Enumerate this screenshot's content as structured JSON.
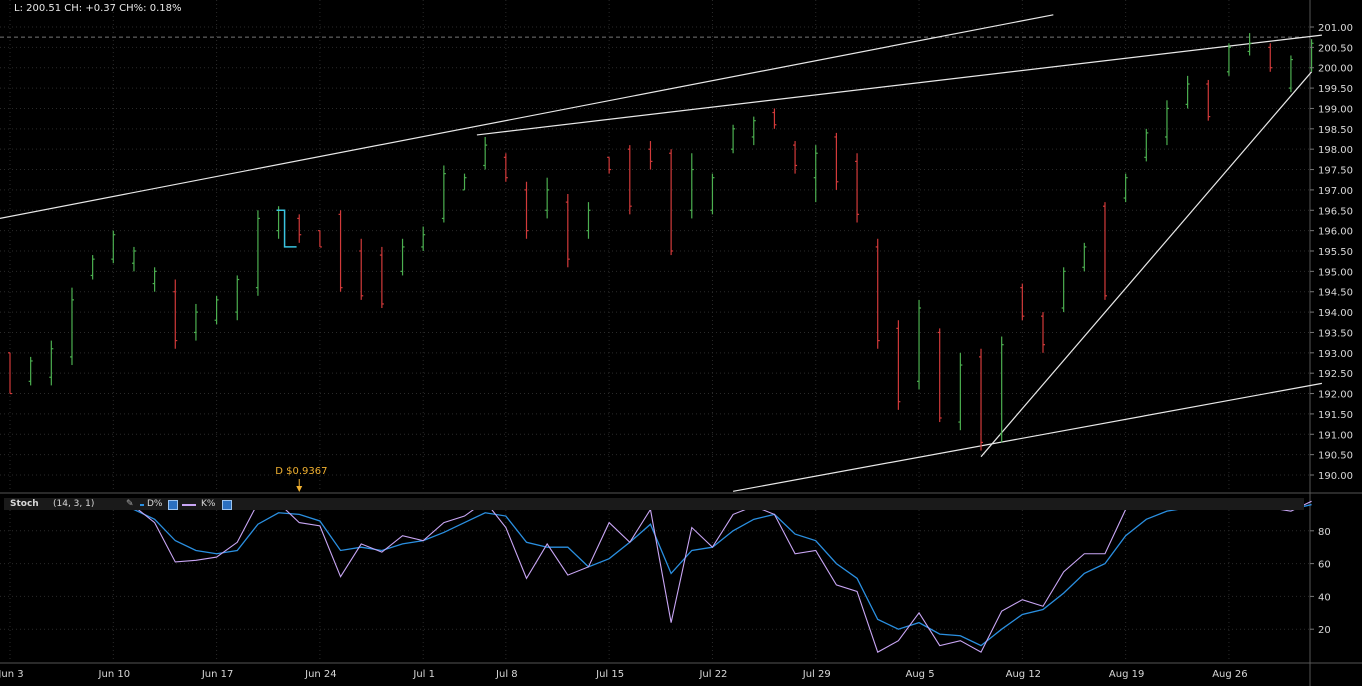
{
  "header": {
    "readout": "L: 200.51 CH: +0.37 CH%: 0.18%"
  },
  "dividend": {
    "label": "D $0.9367",
    "date_index": 14
  },
  "stoch": {
    "name": "Stoch",
    "params": "(14, 3, 1)",
    "d_label": "D%",
    "k_label": "K%",
    "d_color": "#2a8fe0",
    "k_color": "#c9a6f5",
    "yticks": [
      "80",
      "60",
      "40",
      "20"
    ]
  },
  "colors": {
    "up": "#4caf50",
    "down": "#d23a3a",
    "background": "#000000",
    "grid": "#2a2a2a"
  },
  "chart_data": {
    "type": "ohlc",
    "ylim": [
      189.6,
      201.3
    ],
    "yticks": [
      "201.00",
      "200.50",
      "200.00",
      "199.50",
      "199.00",
      "198.50",
      "198.00",
      "197.50",
      "197.00",
      "196.50",
      "196.00",
      "195.50",
      "195.00",
      "194.50",
      "194.00",
      "193.50",
      "193.00",
      "192.50",
      "192.00",
      "191.50",
      "191.00",
      "190.50",
      "190.00"
    ],
    "xticks": [
      {
        "label": "Jun 3",
        "i": 0
      },
      {
        "label": "Jun 10",
        "i": 5
      },
      {
        "label": "Jun 17",
        "i": 10
      },
      {
        "label": "Jun 24",
        "i": 15
      },
      {
        "label": "Jul 1",
        "i": 20
      },
      {
        "label": "Jul 8",
        "i": 24
      },
      {
        "label": "Jul 15",
        "i": 29
      },
      {
        "label": "Jul 22",
        "i": 34
      },
      {
        "label": "Jul 29",
        "i": 39
      },
      {
        "label": "Aug 5",
        "i": 44
      },
      {
        "label": "Aug 12",
        "i": 49
      },
      {
        "label": "Aug 19",
        "i": 54
      },
      {
        "label": "Aug 26",
        "i": 59
      }
    ],
    "last_price": 200.75,
    "bars": [
      {
        "h": 193.0,
        "l": 192.0,
        "o": 193.0,
        "c": 192.0
      },
      {
        "h": 192.9,
        "l": 192.2,
        "o": 192.3,
        "c": 192.8
      },
      {
        "h": 193.3,
        "l": 192.2,
        "o": 192.4,
        "c": 193.1
      },
      {
        "h": 194.6,
        "l": 192.7,
        "o": 192.9,
        "c": 194.3
      },
      {
        "h": 195.4,
        "l": 194.8,
        "o": 194.9,
        "c": 195.3
      },
      {
        "h": 196.0,
        "l": 195.2,
        "o": 195.3,
        "c": 195.9
      },
      {
        "h": 195.6,
        "l": 195.0,
        "o": 195.2,
        "c": 195.5
      },
      {
        "h": 195.1,
        "l": 194.5,
        "o": 194.7,
        "c": 195.0
      },
      {
        "h": 194.8,
        "l": 193.1,
        "o": 194.5,
        "c": 193.3
      },
      {
        "h": 194.2,
        "l": 193.3,
        "o": 193.5,
        "c": 194.0
      },
      {
        "h": 194.4,
        "l": 193.7,
        "o": 193.8,
        "c": 194.3
      },
      {
        "h": 194.9,
        "l": 193.8,
        "o": 194.0,
        "c": 194.8
      },
      {
        "h": 196.5,
        "l": 194.4,
        "o": 194.6,
        "c": 196.3
      },
      {
        "h": 196.6,
        "l": 195.8,
        "o": 196.0,
        "c": 196.5
      },
      {
        "h": 196.4,
        "l": 195.7,
        "o": 196.3,
        "c": 195.9
      },
      {
        "h": 196.0,
        "l": 195.6,
        "o": 196.0,
        "c": 195.6
      },
      {
        "h": 196.5,
        "l": 194.5,
        "o": 196.4,
        "c": 194.6
      },
      {
        "h": 195.8,
        "l": 194.3,
        "o": 195.5,
        "c": 194.4
      },
      {
        "h": 195.6,
        "l": 194.1,
        "o": 195.4,
        "c": 194.2
      },
      {
        "h": 195.8,
        "l": 194.9,
        "o": 195.0,
        "c": 195.6
      },
      {
        "h": 196.1,
        "l": 195.5,
        "o": 195.6,
        "c": 195.9
      },
      {
        "h": 197.6,
        "l": 196.2,
        "o": 196.3,
        "c": 197.4
      },
      {
        "h": 197.4,
        "l": 197.0,
        "o": 197.0,
        "c": 197.3
      },
      {
        "h": 198.3,
        "l": 197.5,
        "o": 197.6,
        "c": 198.1
      },
      {
        "h": 197.9,
        "l": 197.2,
        "o": 197.8,
        "c": 197.3
      },
      {
        "h": 197.2,
        "l": 195.8,
        "o": 197.0,
        "c": 196.0
      },
      {
        "h": 197.3,
        "l": 196.3,
        "o": 196.5,
        "c": 197.0
      },
      {
        "h": 196.9,
        "l": 195.1,
        "o": 196.7,
        "c": 195.3
      },
      {
        "h": 196.7,
        "l": 195.8,
        "o": 196.0,
        "c": 196.5
      },
      {
        "h": 197.8,
        "l": 197.4,
        "o": 197.8,
        "c": 197.5
      },
      {
        "h": 198.1,
        "l": 196.4,
        "o": 198.0,
        "c": 196.6
      },
      {
        "h": 198.2,
        "l": 197.5,
        "o": 198.0,
        "c": 197.7
      },
      {
        "h": 198.0,
        "l": 195.4,
        "o": 197.9,
        "c": 195.5
      },
      {
        "h": 197.9,
        "l": 196.3,
        "o": 196.5,
        "c": 197.5
      },
      {
        "h": 197.4,
        "l": 196.4,
        "o": 196.5,
        "c": 197.3
      },
      {
        "h": 198.6,
        "l": 197.9,
        "o": 198.0,
        "c": 198.5
      },
      {
        "h": 198.8,
        "l": 198.1,
        "o": 198.3,
        "c": 198.7
      },
      {
        "h": 199.0,
        "l": 198.5,
        "o": 198.9,
        "c": 198.6
      },
      {
        "h": 198.2,
        "l": 197.4,
        "o": 198.1,
        "c": 197.6
      },
      {
        "h": 198.1,
        "l": 196.7,
        "o": 197.3,
        "c": 197.9
      },
      {
        "h": 198.4,
        "l": 197.0,
        "o": 198.3,
        "c": 197.2
      },
      {
        "h": 197.9,
        "l": 196.2,
        "o": 197.7,
        "c": 196.4
      },
      {
        "h": 195.8,
        "l": 193.1,
        "o": 195.6,
        "c": 193.3
      },
      {
        "h": 193.8,
        "l": 191.6,
        "o": 193.6,
        "c": 191.8
      },
      {
        "h": 194.3,
        "l": 192.1,
        "o": 192.3,
        "c": 194.1
      },
      {
        "h": 193.6,
        "l": 191.3,
        "o": 193.5,
        "c": 191.4
      },
      {
        "h": 193.0,
        "l": 191.1,
        "o": 191.3,
        "c": 192.7
      },
      {
        "h": 193.1,
        "l": 190.6,
        "o": 192.9,
        "c": 190.8
      },
      {
        "h": 193.4,
        "l": 190.8,
        "o": 191.0,
        "c": 193.2
      },
      {
        "h": 194.7,
        "l": 193.8,
        "o": 194.6,
        "c": 193.9
      },
      {
        "h": 194.0,
        "l": 193.0,
        "o": 193.9,
        "c": 193.2
      },
      {
        "h": 195.1,
        "l": 194.0,
        "o": 194.1,
        "c": 195.0
      },
      {
        "h": 195.7,
        "l": 195.0,
        "o": 195.1,
        "c": 195.6
      },
      {
        "h": 196.7,
        "l": 194.3,
        "o": 196.6,
        "c": 194.4
      },
      {
        "h": 197.4,
        "l": 196.7,
        "o": 196.8,
        "c": 197.3
      },
      {
        "h": 198.5,
        "l": 197.7,
        "o": 197.8,
        "c": 198.4
      },
      {
        "h": 199.2,
        "l": 198.1,
        "o": 198.3,
        "c": 199.0
      },
      {
        "h": 199.8,
        "l": 199.0,
        "o": 199.1,
        "c": 199.6
      },
      {
        "h": 199.7,
        "l": 198.7,
        "o": 199.6,
        "c": 198.8
      },
      {
        "h": 200.6,
        "l": 199.8,
        "o": 199.9,
        "c": 200.5
      },
      {
        "h": 200.85,
        "l": 200.3,
        "o": 200.4,
        "c": 200.6
      },
      {
        "h": 200.6,
        "l": 199.9,
        "o": 200.5,
        "c": 200.0
      },
      {
        "h": 200.3,
        "l": 199.4,
        "o": 199.5,
        "c": 200.2
      },
      {
        "h": 200.7,
        "l": 199.9,
        "o": 200.0,
        "c": 200.6
      }
    ],
    "trendlines": [
      {
        "x1": -0.5,
        "y1": 196.3,
        "x2": 50.5,
        "y2": 201.3
      },
      {
        "x1": 22.6,
        "y1": 198.35,
        "x2": 63.5,
        "y2": 200.8
      },
      {
        "x1": 47.0,
        "y1": 190.45,
        "x2": 63.0,
        "y2": 199.9
      },
      {
        "x1": 35.0,
        "y1": 189.6,
        "x2": 63.5,
        "y2": 192.25
      }
    ],
    "annotation_steps": [
      {
        "i": 13,
        "from": 196.5,
        "to": 195.6
      }
    ],
    "stoch_k": [
      97,
      96,
      96,
      96,
      97,
      95,
      95,
      85,
      61,
      62,
      64,
      73,
      97,
      97,
      85,
      83,
      52,
      72,
      67,
      77,
      74,
      85,
      89,
      98,
      82,
      51,
      72,
      53,
      58,
      85,
      73,
      93,
      24,
      82,
      70,
      90,
      95,
      90,
      66,
      68,
      47,
      43,
      6,
      13,
      30,
      10,
      13,
      6,
      31,
      38,
      34,
      55,
      66,
      66,
      93,
      98,
      96,
      96,
      95,
      96,
      96,
      94,
      92,
      98
    ],
    "stoch_d": [
      97,
      96,
      95,
      94,
      95,
      94,
      93,
      87,
      74,
      68,
      66,
      68,
      84,
      91,
      90,
      86,
      68,
      70,
      68,
      72,
      74,
      79,
      85,
      91,
      89,
      73,
      70,
      70,
      58,
      63,
      73,
      84,
      54,
      68,
      70,
      80,
      87,
      90,
      78,
      74,
      60,
      51,
      26,
      20,
      24,
      17,
      16,
      10,
      20,
      29,
      32,
      42,
      54,
      60,
      77,
      87,
      92,
      94,
      95,
      95,
      95,
      95,
      93,
      96
    ]
  }
}
